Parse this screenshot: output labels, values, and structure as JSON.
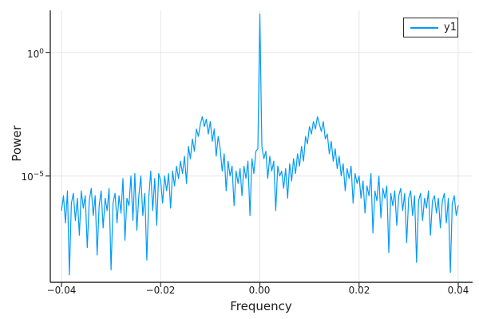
{
  "colors": {
    "background": "#ffffff",
    "series": "#009af9",
    "grid": "#e6e6e6",
    "axis": "#2c2c2c",
    "tick_label": "#1c1c1c",
    "legend_border": "#2b2b2b"
  },
  "chart_data": {
    "type": "line",
    "title": "",
    "xlabel": "Frequency",
    "ylabel": "Power",
    "x_axis": {
      "min": -0.0423,
      "max": 0.0429,
      "scale": "linear"
    },
    "y_axis": {
      "scale": "log10",
      "min_log10": -9.3,
      "max_log10": 1.7
    },
    "grid": true,
    "xticks": {
      "values": [
        -0.04,
        -0.02,
        0.0,
        0.02,
        0.04
      ],
      "labels": [
        "−0.04",
        "−0.02",
        "0.00",
        "0.02",
        "0.04"
      ]
    },
    "yticks": [
      {
        "log10": 0,
        "base": "10",
        "exp": "0"
      },
      {
        "log10": -5,
        "base": "10",
        "exp": "−5"
      }
    ],
    "legend": {
      "position": "top-right",
      "label": "y1"
    },
    "series": [
      {
        "name": "y1",
        "color": "#009af9",
        "x_start": -0.04,
        "x_step": 0.0004,
        "n_points": 201,
        "log10_power": [
          -6.4,
          -5.8,
          -6.9,
          -5.6,
          -9.0,
          -6.1,
          -5.7,
          -6.8,
          -5.9,
          -7.4,
          -5.6,
          -6.3,
          -5.8,
          -7.9,
          -6.0,
          -5.5,
          -6.6,
          -5.8,
          -8.2,
          -6.2,
          -5.6,
          -7.1,
          -5.9,
          -6.4,
          -5.5,
          -8.8,
          -6.1,
          -5.7,
          -6.9,
          -5.8,
          -6.5,
          -5.1,
          -7.6,
          -5.9,
          -6.2,
          -5.0,
          -6.8,
          -4.9,
          -7.2,
          -5.8,
          -5.0,
          -6.6,
          -5.7,
          -8.4,
          -5.9,
          -4.8,
          -6.4,
          -5.1,
          -7.0,
          -4.9,
          -5.2,
          -6.1,
          -5.0,
          -5.6,
          -4.9,
          -6.3,
          -4.8,
          -5.4,
          -4.6,
          -5.1,
          -4.4,
          -4.9,
          -4.2,
          -5.3,
          -3.8,
          -4.3,
          -3.5,
          -4.0,
          -3.1,
          -3.4,
          -2.9,
          -2.6,
          -3.0,
          -2.7,
          -3.3,
          -2.8,
          -3.6,
          -3.1,
          -4.2,
          -3.4,
          -3.9,
          -4.8,
          -4.1,
          -5.6,
          -4.4,
          -5.0,
          -4.6,
          -6.2,
          -4.8,
          -5.3,
          -4.7,
          -5.8,
          -4.6,
          -5.1,
          -4.4,
          -6.6,
          -4.3,
          -4.9,
          -4.0,
          -3.9,
          1.55,
          -3.8,
          -4.3,
          -4.0,
          -5.1,
          -4.2,
          -4.8,
          -4.4,
          -6.4,
          -4.6,
          -5.0,
          -4.8,
          -5.5,
          -4.7,
          -5.9,
          -4.5,
          -5.2,
          -4.3,
          -4.9,
          -4.1,
          -4.6,
          -3.8,
          -4.4,
          -3.4,
          -3.7,
          -3.0,
          -3.3,
          -2.8,
          -3.1,
          -2.6,
          -2.9,
          -3.2,
          -2.8,
          -3.5,
          -3.3,
          -4.1,
          -3.6,
          -4.4,
          -3.9,
          -4.7,
          -4.2,
          -5.0,
          -4.5,
          -5.6,
          -4.7,
          -5.1,
          -4.6,
          -6.1,
          -4.9,
          -5.3,
          -5.0,
          -5.9,
          -5.2,
          -6.5,
          -5.4,
          -5.8,
          -4.9,
          -7.3,
          -5.6,
          -6.0,
          -5.0,
          -6.7,
          -5.5,
          -5.9,
          -5.4,
          -8.1,
          -5.7,
          -6.2,
          -5.6,
          -7.0,
          -5.8,
          -5.5,
          -6.4,
          -5.7,
          -7.7,
          -5.9,
          -5.6,
          -6.6,
          -5.8,
          -8.5,
          -6.0,
          -5.7,
          -6.8,
          -5.9,
          -6.3,
          -5.6,
          -7.4,
          -6.0,
          -5.8,
          -6.5,
          -5.9,
          -7.1,
          -6.0,
          -5.7,
          -6.9,
          -5.9,
          -8.9,
          -6.1,
          -5.8,
          -6.6,
          -6.2
        ]
      }
    ]
  }
}
